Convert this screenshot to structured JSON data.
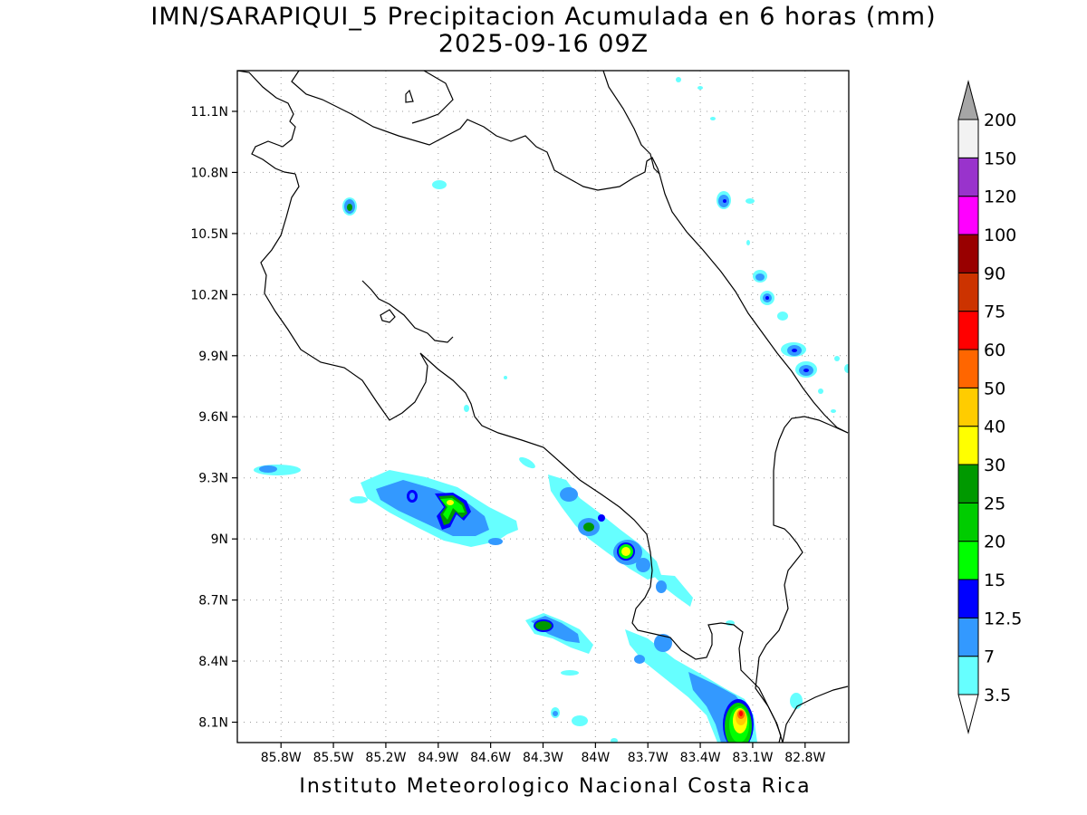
{
  "title": {
    "line1": "IMN/SARAPIQUI_5 Precipitacion Acumulada en 6 horas (mm)",
    "line2": "2025-09-16 09Z"
  },
  "footer": "Instituto Meteorologico Nacional Costa Rica",
  "map": {
    "lon_range": [
      -86.05,
      -82.55
    ],
    "lat_range": [
      8.0,
      11.3
    ],
    "lat_ticks": [
      {
        "value": 11.1,
        "label": "11.1N"
      },
      {
        "value": 10.8,
        "label": "10.8N"
      },
      {
        "value": 10.5,
        "label": "10.5N"
      },
      {
        "value": 10.2,
        "label": "10.2N"
      },
      {
        "value": 9.9,
        "label": "9.9N"
      },
      {
        "value": 9.6,
        "label": "9.6N"
      },
      {
        "value": 9.3,
        "label": "9.3N"
      },
      {
        "value": 9.0,
        "label": "9N"
      },
      {
        "value": 8.7,
        "label": "8.7N"
      },
      {
        "value": 8.4,
        "label": "8.4N"
      },
      {
        "value": 8.1,
        "label": "8.1N"
      }
    ],
    "lon_ticks": [
      {
        "value": -85.8,
        "label": "85.8W"
      },
      {
        "value": -85.5,
        "label": "85.5W"
      },
      {
        "value": -85.2,
        "label": "85.2W"
      },
      {
        "value": -84.9,
        "label": "84.9W"
      },
      {
        "value": -84.6,
        "label": "84.6W"
      },
      {
        "value": -84.3,
        "label": "84.3W"
      },
      {
        "value": -84.0,
        "label": "84W"
      },
      {
        "value": -83.7,
        "label": "83.7W"
      },
      {
        "value": -83.4,
        "label": "83.4W"
      },
      {
        "value": -83.1,
        "label": "83.1W"
      },
      {
        "value": -82.8,
        "label": "82.8W"
      }
    ],
    "grid": "dotted"
  },
  "colorbar": {
    "labels": [
      "3.5",
      "7",
      "12.5",
      "15",
      "20",
      "25",
      "30",
      "40",
      "50",
      "60",
      "75",
      "90",
      "100",
      "120",
      "150",
      "200"
    ],
    "colors": [
      "#66ffff",
      "#3399ff",
      "#0000ff",
      "#00ff00",
      "#00cc00",
      "#009900",
      "#ffff00",
      "#ffcc00",
      "#ff6600",
      "#ff0000",
      "#cc3300",
      "#990000",
      "#ff00ff",
      "#9933cc",
      "#f2f2f2"
    ],
    "over_color": "#a6a6a6",
    "under_color": "#ffffff"
  }
}
